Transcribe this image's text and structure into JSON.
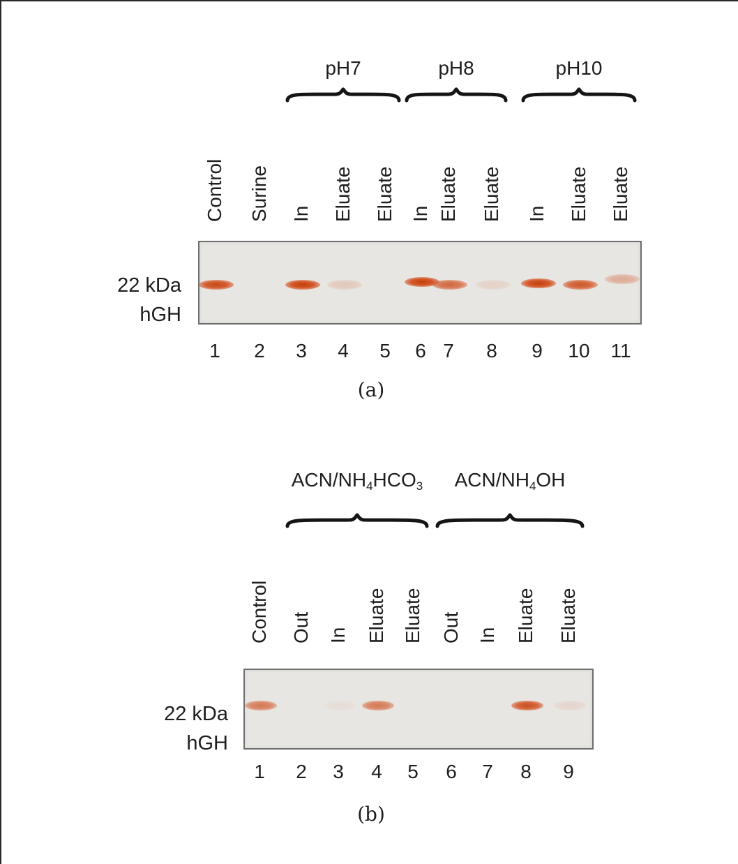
{
  "panel_a": {
    "caption": "(a)",
    "marker": {
      "line1": "22 kDa",
      "line2": "hGH"
    },
    "groups": [
      {
        "label": "pH7",
        "lanes": [
          3,
          5
        ]
      },
      {
        "label": "pH8",
        "lanes": [
          6,
          8
        ]
      },
      {
        "label": "pH10",
        "lanes": [
          9,
          11
        ]
      }
    ],
    "lanes": [
      {
        "number": "1",
        "label": "Control",
        "band_intensity": 0.95,
        "band_shift": 0
      },
      {
        "number": "2",
        "label": "Surine",
        "band_intensity": 0.0,
        "band_shift": 0
      },
      {
        "number": "3",
        "label": "In",
        "band_intensity": 1.0,
        "band_shift": 0
      },
      {
        "number": "4",
        "label": "Eluate",
        "band_intensity": 0.18,
        "band_shift": 0
      },
      {
        "number": "5",
        "label": "Eluate",
        "band_intensity": 0.0,
        "band_shift": 0
      },
      {
        "number": "6",
        "label": "In",
        "band_intensity": 1.0,
        "band_shift": -4
      },
      {
        "number": "7",
        "label": "Eluate",
        "band_intensity": 0.75,
        "band_shift": 0
      },
      {
        "number": "8",
        "label": "Eluate",
        "band_intensity": 0.12,
        "band_shift": 0
      },
      {
        "number": "9",
        "label": "In",
        "band_intensity": 1.0,
        "band_shift": -2
      },
      {
        "number": "10",
        "label": "Eluate",
        "band_intensity": 0.85,
        "band_shift": 0
      },
      {
        "number": "11",
        "label": "Eluate",
        "band_intensity": 0.35,
        "band_shift": -8
      }
    ]
  },
  "panel_b": {
    "caption": "(b)",
    "marker": {
      "line1": "22 kDa",
      "line2": "hGH"
    },
    "groups": [
      {
        "label_parts": [
          "ACN/NH",
          "4",
          "HCO",
          "3"
        ],
        "lanes": [
          2,
          5
        ]
      },
      {
        "label_parts": [
          "ACN/NH",
          "4",
          "OH",
          ""
        ],
        "lanes": [
          6,
          9
        ]
      }
    ],
    "lanes": [
      {
        "number": "1",
        "label": "Control",
        "band_intensity": 0.65
      },
      {
        "number": "2",
        "label": "Out",
        "band_intensity": 0.0
      },
      {
        "number": "3",
        "label": "In",
        "band_intensity": 0.05
      },
      {
        "number": "4",
        "label": "Eluate",
        "band_intensity": 0.65
      },
      {
        "number": "5",
        "label": "Eluate",
        "band_intensity": 0.0
      },
      {
        "number": "6",
        "label": "Out",
        "band_intensity": 0.0
      },
      {
        "number": "7",
        "label": "In",
        "band_intensity": 0.0
      },
      {
        "number": "8",
        "label": "Eluate",
        "band_intensity": 0.9
      },
      {
        "number": "9",
        "label": "Eluate",
        "band_intensity": 0.1
      }
    ]
  }
}
